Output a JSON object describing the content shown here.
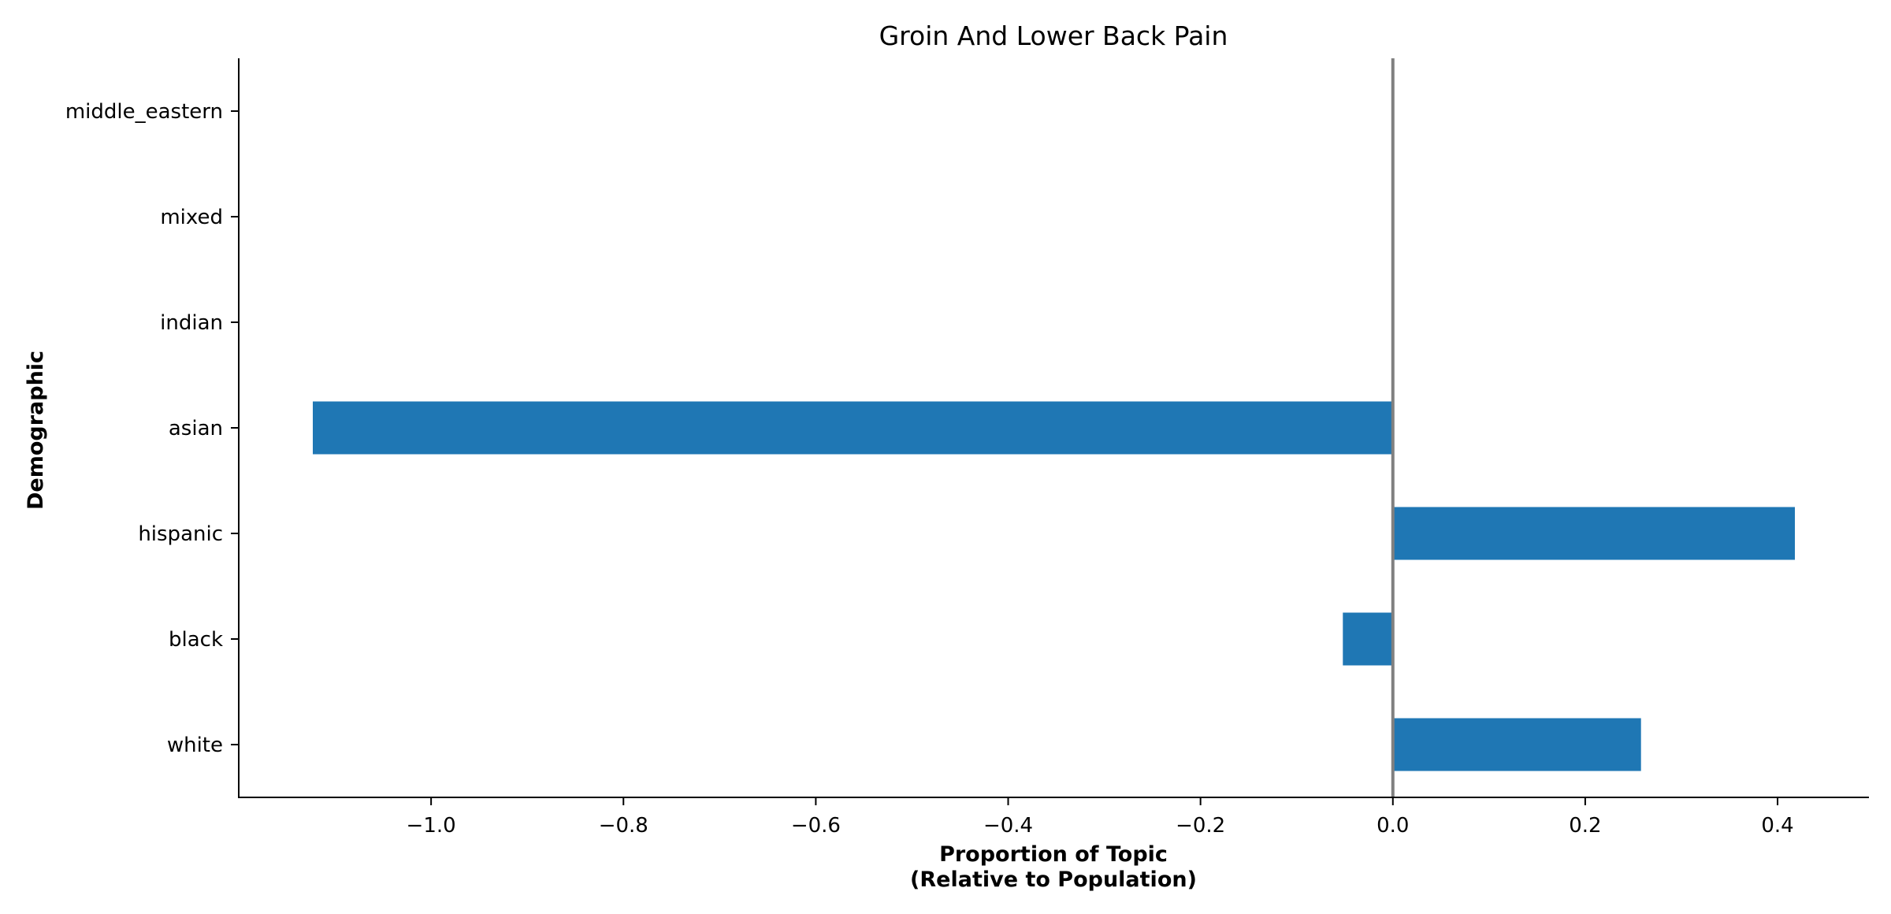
{
  "chart_data": {
    "type": "bar",
    "orientation": "horizontal",
    "title": "Groin And Lower Back Pain",
    "xlabel_lines": [
      "Proportion of Topic",
      "(Relative to Population)"
    ],
    "ylabel": "Demographic",
    "categories": [
      "white",
      "black",
      "hispanic",
      "asian",
      "indian",
      "mixed",
      "middle_eastern"
    ],
    "values": [
      0.258,
      -0.052,
      0.418,
      -1.123,
      0,
      0,
      0
    ],
    "xlim": [
      -1.2,
      0.495
    ],
    "xticks": [
      -1.0,
      -0.8,
      -0.6,
      -0.4,
      -0.2,
      0.0,
      0.2,
      0.4
    ],
    "xtick_labels": [
      "−1.0",
      "−0.8",
      "−0.6",
      "−0.4",
      "−0.2",
      "0.0",
      "0.2",
      "0.4"
    ],
    "bar_color": "#1f77b4",
    "zero_line_color": "#808080",
    "grid": false,
    "legend": "none"
  }
}
